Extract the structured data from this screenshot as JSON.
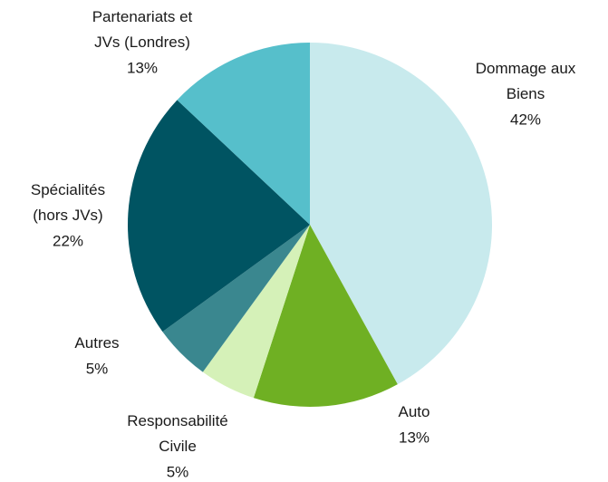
{
  "chart_data": {
    "type": "pie",
    "categories": [
      "Dommage aux\nBiens",
      "Auto",
      "Responsabilité\nCivile",
      "Autres",
      "Spécialités\n(hors JVs)",
      "Partenariats et\nJVs (Londres)"
    ],
    "values": [
      42,
      13,
      5,
      5,
      22,
      13
    ],
    "value_labels": [
      "42%",
      "13%",
      "5%",
      "5%",
      "22%",
      "13%"
    ],
    "colors": [
      "#c8eaed",
      "#6fb023",
      "#d5f1b8",
      "#3a878f",
      "#005462",
      "#56bfcb"
    ]
  }
}
